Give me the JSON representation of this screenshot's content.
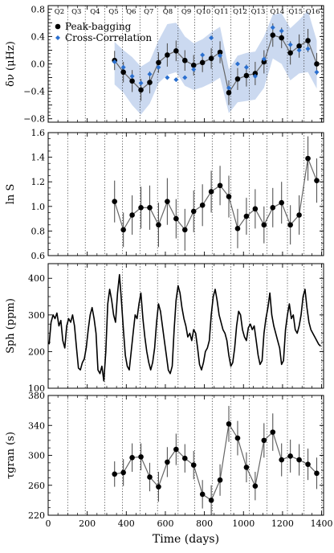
{
  "figure": {
    "xlabel": "Time (days)",
    "x_ticks": [
      0,
      200,
      400,
      600,
      800,
      1000,
      1200,
      1400
    ],
    "xlim": [
      0,
      1410
    ],
    "quarters": {
      "labels": [
        "Q2",
        "Q3",
        "Q4",
        "Q5",
        "Q6",
        "Q7",
        "Q8",
        "Q9",
        "Q10",
        "Q11",
        "Q12",
        "Q13",
        "Q14",
        "Q15",
        "Q16"
      ],
      "boundaries": [
        100,
        190,
        290,
        380,
        470,
        560,
        665,
        750,
        840,
        935,
        1030,
        1120,
        1225,
        1310,
        1400
      ]
    }
  },
  "chart_data": [
    {
      "type": "line",
      "ylabel": "δν (μHz)",
      "ylim": [
        -0.85,
        0.85
      ],
      "y_ticks": [
        -0.8,
        -0.6,
        -0.4,
        -0.2,
        0.0,
        0.2,
        0.4,
        0.6,
        0.8
      ],
      "y_tick_labels": [
        "−0.8",
        "",
        "−0.4",
        "",
        "0.0",
        "",
        "0.4",
        "",
        "0.8"
      ],
      "legend_position": "top-left",
      "series": [
        {
          "name": "Peak-bagging",
          "style": "line-with-markers",
          "color": "#000000",
          "x": [
            340,
            385,
            430,
            475,
            520,
            565,
            610,
            655,
            700,
            745,
            790,
            835,
            880,
            925,
            970,
            1015,
            1060,
            1105,
            1150,
            1195,
            1240,
            1285,
            1330,
            1375
          ],
          "y": [
            0.05,
            -0.12,
            -0.25,
            -0.38,
            -0.27,
            0.02,
            0.13,
            0.19,
            0.05,
            -0.02,
            0.02,
            0.08,
            0.17,
            -0.42,
            -0.22,
            -0.17,
            -0.14,
            0.03,
            0.42,
            0.38,
            0.16,
            0.26,
            0.34,
            0.0
          ],
          "error": [
            0.14,
            0.15,
            0.16,
            0.16,
            0.16,
            0.15,
            0.17,
            0.15,
            0.15,
            0.15,
            0.14,
            0.15,
            0.16,
            0.18,
            0.16,
            0.16,
            0.17,
            0.17,
            0.17,
            0.15,
            0.17,
            0.17,
            0.17,
            0.16
          ]
        },
        {
          "name": "Cross-Correlation",
          "style": "markers",
          "color": "#2a6fcf",
          "x": [
            340,
            385,
            430,
            475,
            520,
            565,
            610,
            655,
            700,
            745,
            790,
            835,
            880,
            925,
            970,
            1015,
            1060,
            1105,
            1150,
            1195,
            1240,
            1285,
            1330,
            1375
          ],
          "y": [
            0.03,
            -0.05,
            -0.18,
            -0.28,
            -0.15,
            -0.05,
            -0.2,
            -0.23,
            -0.2,
            -0.08,
            0.13,
            0.38,
            0.12,
            -0.35,
            0.0,
            -0.05,
            -0.18,
            0.07,
            0.53,
            0.48,
            0.28,
            0.2,
            0.22,
            -0.12
          ]
        }
      ],
      "band": {
        "color": "#c5d5ee",
        "x": [
          340,
          385,
          430,
          475,
          520,
          565,
          610,
          655,
          700,
          745,
          790,
          835,
          880,
          925,
          970,
          1015,
          1060,
          1105,
          1150,
          1195,
          1240,
          1285,
          1330,
          1375
        ],
        "lower": [
          -0.3,
          -0.42,
          -0.6,
          -0.74,
          -0.58,
          -0.28,
          -0.16,
          -0.12,
          -0.32,
          -0.38,
          -0.34,
          -0.28,
          -0.2,
          -0.72,
          -0.56,
          -0.54,
          -0.52,
          -0.35,
          0.08,
          0.0,
          -0.24,
          -0.14,
          -0.12,
          -0.36
        ],
        "upper": [
          0.32,
          0.2,
          0.1,
          -0.04,
          0.04,
          0.34,
          0.58,
          0.6,
          0.4,
          0.3,
          0.36,
          0.46,
          0.54,
          -0.08,
          0.12,
          0.16,
          0.18,
          0.4,
          0.72,
          0.74,
          0.52,
          0.64,
          0.78,
          0.34
        ]
      }
    },
    {
      "type": "line",
      "ylabel": "ln S",
      "ylim": [
        0.6,
        1.6
      ],
      "y_ticks": [
        0.6,
        0.8,
        1.0,
        1.2,
        1.4,
        1.6
      ],
      "y_tick_labels": [
        "0.6",
        "0.8",
        "1.0",
        "1.2",
        "1.4",
        "1.6"
      ],
      "series": [
        {
          "name": "",
          "style": "line-with-markers",
          "color": "#000000",
          "x": [
            340,
            385,
            430,
            475,
            520,
            565,
            610,
            655,
            700,
            745,
            790,
            835,
            880,
            925,
            970,
            1015,
            1060,
            1105,
            1150,
            1195,
            1240,
            1285,
            1330,
            1375
          ],
          "y": [
            1.04,
            0.81,
            0.93,
            0.99,
            0.99,
            0.85,
            1.04,
            0.9,
            0.81,
            0.96,
            1.01,
            1.12,
            1.17,
            1.08,
            0.82,
            0.92,
            0.98,
            0.85,
            0.99,
            1.03,
            0.85,
            0.93,
            1.39,
            1.21
          ],
          "error": [
            0.17,
            0.14,
            0.16,
            0.17,
            0.18,
            0.18,
            0.19,
            0.16,
            0.17,
            0.17,
            0.17,
            0.17,
            0.16,
            0.17,
            0.16,
            0.15,
            0.16,
            0.15,
            0.16,
            0.17,
            0.16,
            0.16,
            0.18,
            0.18
          ]
        }
      ]
    },
    {
      "type": "line",
      "ylabel": "Sph (ppm)",
      "ylim": [
        100,
        440
      ],
      "y_ticks": [
        100,
        200,
        300,
        400
      ],
      "y_tick_labels": [
        "100",
        "200",
        "300",
        "400"
      ],
      "series": [
        {
          "name": "",
          "style": "line",
          "color": "#000000",
          "x": [
            5,
            15,
            25,
            35,
            45,
            55,
            65,
            75,
            85,
            95,
            105,
            115,
            125,
            135,
            145,
            155,
            165,
            175,
            185,
            195,
            205,
            215,
            225,
            235,
            245,
            255,
            265,
            275,
            285,
            295,
            305,
            315,
            325,
            335,
            345,
            355,
            365,
            375,
            385,
            395,
            405,
            415,
            425,
            435,
            445,
            455,
            465,
            475,
            485,
            495,
            505,
            515,
            525,
            535,
            545,
            555,
            565,
            575,
            585,
            595,
            605,
            615,
            625,
            635,
            645,
            655,
            665,
            675,
            685,
            695,
            705,
            715,
            725,
            735,
            745,
            755,
            765,
            775,
            785,
            795,
            805,
            815,
            825,
            835,
            845,
            855,
            865,
            875,
            885,
            895,
            905,
            915,
            925,
            935,
            945,
            955,
            965,
            975,
            985,
            995,
            1005,
            1015,
            1025,
            1035,
            1045,
            1055,
            1065,
            1075,
            1085,
            1095,
            1105,
            1115,
            1125,
            1135,
            1145,
            1155,
            1165,
            1175,
            1185,
            1195,
            1205,
            1215,
            1225,
            1235,
            1245,
            1255,
            1265,
            1275,
            1285,
            1295,
            1305,
            1315,
            1325,
            1335,
            1345,
            1355,
            1365,
            1375,
            1385,
            1395
          ],
          "y": [
            220,
            280,
            300,
            290,
            305,
            270,
            285,
            230,
            210,
            270,
            290,
            280,
            300,
            270,
            210,
            155,
            150,
            170,
            180,
            210,
            260,
            300,
            320,
            290,
            250,
            150,
            140,
            160,
            120,
            200,
            330,
            370,
            340,
            300,
            280,
            360,
            410,
            340,
            260,
            190,
            160,
            150,
            200,
            250,
            300,
            290,
            330,
            360,
            290,
            240,
            200,
            170,
            150,
            170,
            210,
            280,
            330,
            310,
            270,
            230,
            190,
            150,
            140,
            160,
            260,
            340,
            380,
            360,
            320,
            290,
            270,
            240,
            250,
            230,
            260,
            250,
            210,
            165,
            150,
            170,
            200,
            210,
            230,
            300,
            350,
            370,
            340,
            300,
            280,
            260,
            250,
            230,
            190,
            160,
            170,
            210,
            270,
            310,
            300,
            260,
            240,
            230,
            265,
            275,
            260,
            270,
            230,
            190,
            165,
            175,
            250,
            290,
            320,
            360,
            300,
            270,
            250,
            230,
            210,
            165,
            175,
            260,
            300,
            330,
            290,
            300,
            260,
            250,
            270,
            300,
            350,
            370,
            320,
            280,
            260,
            250,
            240,
            230,
            220,
            215
          ]
        }
      ]
    },
    {
      "type": "line",
      "ylabel": "τgran (s)",
      "ylim": [
        220,
        380
      ],
      "y_ticks": [
        220,
        260,
        300,
        340,
        380
      ],
      "y_tick_labels": [
        "220",
        "260",
        "300",
        "340",
        "380"
      ],
      "series": [
        {
          "name": "",
          "style": "line-with-markers",
          "color": "#000000",
          "x": [
            340,
            385,
            430,
            475,
            520,
            565,
            610,
            655,
            700,
            745,
            790,
            835,
            880,
            925,
            970,
            1015,
            1060,
            1105,
            1150,
            1195,
            1240,
            1285,
            1330,
            1375
          ],
          "y": [
            275,
            277,
            297,
            298,
            271,
            258,
            291,
            308,
            296,
            287,
            248,
            240,
            267,
            342,
            323,
            284,
            259,
            320,
            331,
            294,
            299,
            294,
            288,
            276
          ],
          "error": [
            17,
            18,
            19,
            18,
            19,
            20,
            20,
            21,
            19,
            19,
            19,
            20,
            21,
            24,
            23,
            20,
            19,
            23,
            25,
            22,
            22,
            21,
            21,
            21
          ]
        }
      ]
    }
  ]
}
